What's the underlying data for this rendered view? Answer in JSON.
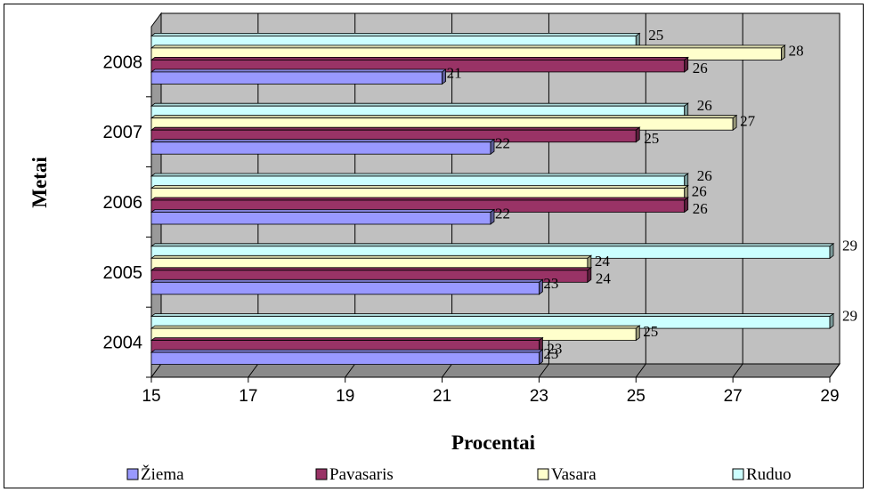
{
  "chart_data": {
    "type": "bar",
    "orientation": "horizontal",
    "three_d": true,
    "categories": [
      "2004",
      "2005",
      "2006",
      "2007",
      "2008"
    ],
    "series": [
      {
        "name": "Žiema",
        "color": "#9999FF",
        "values": [
          23,
          23,
          22,
          22,
          21
        ]
      },
      {
        "name": "Pavasaris",
        "color": "#993366",
        "values": [
          23,
          24,
          26,
          25,
          26
        ]
      },
      {
        "name": "Vasara",
        "color": "#FFFFCC",
        "values": [
          25,
          24,
          26,
          27,
          28
        ]
      },
      {
        "name": "Ruduo",
        "color": "#CCFFFF",
        "values": [
          29,
          29,
          26,
          26,
          25
        ]
      }
    ],
    "xlabel": "Procentai",
    "ylabel": "Metai",
    "xlim": [
      15,
      29
    ],
    "xticks": [
      15,
      17,
      19,
      21,
      23,
      25,
      27,
      29
    ],
    "grid": true,
    "wall_color": "#C0C0C0",
    "legend_position": "bottom"
  }
}
